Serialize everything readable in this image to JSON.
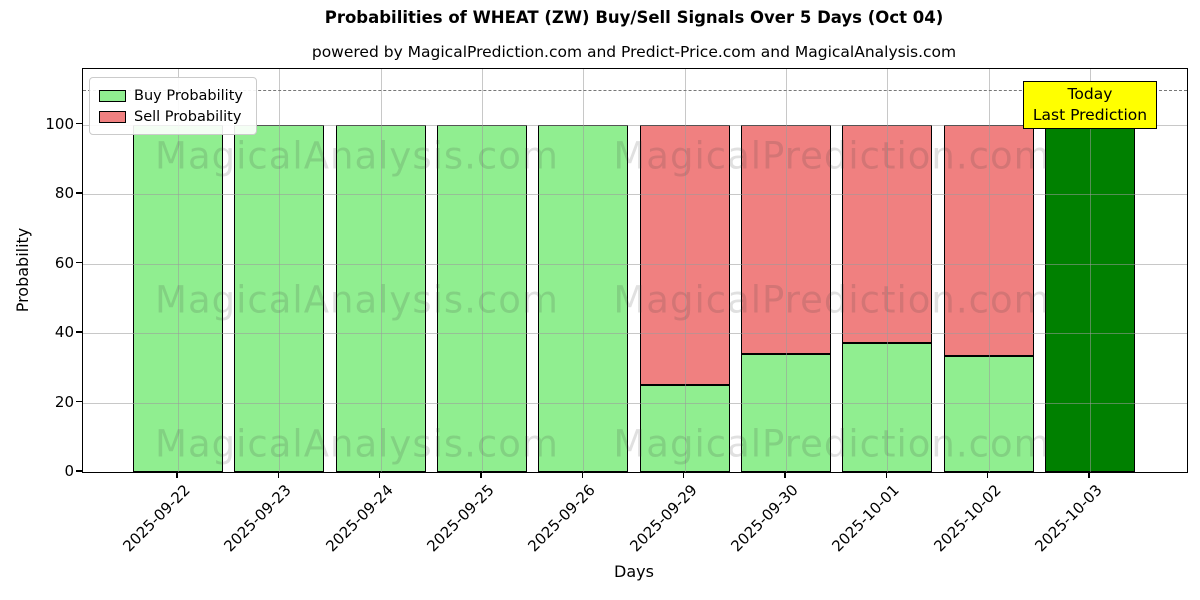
{
  "chart_data": {
    "type": "bar",
    "stacked": true,
    "title": "Probabilities of WHEAT (ZW) Buy/Sell Signals Over 5 Days (Oct 04)",
    "subtitle": "powered by MagicalPrediction.com and Predict-Price.com and MagicalAnalysis.com",
    "xlabel": "Days",
    "ylabel": "Probability",
    "categories": [
      "2025-09-22",
      "2025-09-23",
      "2025-09-24",
      "2025-09-25",
      "2025-09-26",
      "2025-09-29",
      "2025-09-30",
      "2025-10-01",
      "2025-10-02",
      "2025-10-03"
    ],
    "series": [
      {
        "name": "Buy Probability",
        "color": "#90ee90",
        "values": [
          100,
          100,
          100,
          100,
          100,
          25,
          34,
          37,
          33.5,
          100
        ]
      },
      {
        "name": "Sell Probability",
        "color": "#f08080",
        "values": [
          0,
          0,
          0,
          0,
          0,
          75,
          66,
          63,
          66.5,
          0
        ]
      }
    ],
    "today_index": 9,
    "today_color": "#008000",
    "ylim": [
      0,
      116
    ],
    "yticks": [
      0,
      20,
      40,
      60,
      80,
      100
    ],
    "grid": true,
    "legend_position": "upper left",
    "dashed_line_y": 110,
    "bar_edge_color": "#000000",
    "annotation": {
      "line1": "Today",
      "line2": "Last Prediction",
      "bg_color": "#ffff00"
    },
    "watermarks": [
      "MagicalAnalysis.com",
      "MagicalPrediction.com"
    ]
  }
}
